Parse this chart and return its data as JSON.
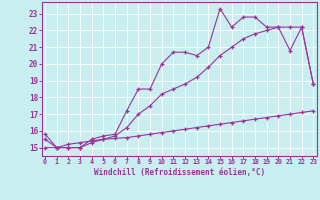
{
  "x": [
    0,
    1,
    2,
    3,
    4,
    5,
    6,
    7,
    8,
    9,
    10,
    11,
    12,
    13,
    14,
    15,
    16,
    17,
    18,
    19,
    20,
    21,
    22,
    23
  ],
  "line1": [
    15.8,
    15.0,
    15.0,
    15.0,
    15.5,
    15.7,
    15.8,
    17.2,
    18.5,
    18.5,
    20.0,
    20.7,
    20.7,
    20.5,
    21.0,
    23.3,
    22.2,
    22.8,
    22.8,
    22.2,
    22.2,
    20.8,
    22.2,
    18.8
  ],
  "line2": [
    15.5,
    15.0,
    15.0,
    15.0,
    15.3,
    15.5,
    15.7,
    16.2,
    17.0,
    17.5,
    18.2,
    18.5,
    18.8,
    19.2,
    19.8,
    20.5,
    21.0,
    21.5,
    21.8,
    22.0,
    22.2,
    22.2,
    22.2,
    18.8
  ],
  "line3": [
    15.0,
    15.0,
    15.2,
    15.3,
    15.4,
    15.5,
    15.55,
    15.6,
    15.7,
    15.8,
    15.9,
    16.0,
    16.1,
    16.2,
    16.3,
    16.4,
    16.5,
    16.6,
    16.7,
    16.8,
    16.9,
    17.0,
    17.1,
    17.2
  ],
  "color": "#993399",
  "bg_color": "#c8eef0",
  "grid_color": "#b0d8da",
  "xlabel": "Windchill (Refroidissement éolien,°C)",
  "xlim": [
    -0.3,
    23.3
  ],
  "ylim": [
    14.5,
    23.7
  ],
  "xticks": [
    0,
    1,
    2,
    3,
    4,
    5,
    6,
    7,
    8,
    9,
    10,
    11,
    12,
    13,
    14,
    15,
    16,
    17,
    18,
    19,
    20,
    21,
    22,
    23
  ],
  "yticks": [
    15,
    16,
    17,
    18,
    19,
    20,
    21,
    22,
    23
  ]
}
